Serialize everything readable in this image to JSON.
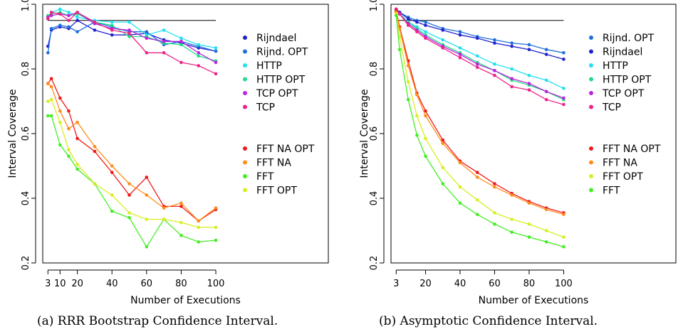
{
  "chart_data": [
    {
      "type": "line",
      "caption": "(a) RRR Bootstrap Confidence Interval.",
      "xlabel": "Number of Executions",
      "ylabel": "Interval Coverage",
      "xlim": [
        0,
        165
      ],
      "ylim": [
        0.2,
        1.0
      ],
      "xticks": [
        3,
        10,
        20,
        40,
        60,
        80,
        100
      ],
      "xtick_labels": [
        "3",
        "10",
        "20",
        "40",
        "60",
        "80",
        "100"
      ],
      "yticks": [
        0.2,
        0.4,
        0.6,
        0.8,
        1.0
      ],
      "ytick_labels": [
        "0.2",
        "0.4",
        "0.6",
        "0.8",
        "1.0"
      ],
      "reference_line": {
        "y": 0.95,
        "x": [
          3,
          100
        ]
      },
      "legend_groups": [
        {
          "position": "upper-right",
          "series": [
            "Rijndael",
            "Rijnd. OPT",
            "HTTP",
            "HTTP OPT",
            "TCP OPT",
            "TCP"
          ]
        },
        {
          "position": "middle-right",
          "series": [
            "FFT NA OPT",
            "FFT NA",
            "FFT",
            "FFT OPT"
          ]
        }
      ],
      "x": [
        3,
        5,
        10,
        15,
        20,
        30,
        40,
        50,
        60,
        70,
        80,
        90,
        100
      ],
      "series": [
        {
          "name": "Rijndael",
          "color": "#2222cc",
          "values": [
            0.87,
            0.92,
            0.93,
            0.925,
            0.95,
            0.92,
            0.905,
            0.905,
            0.91,
            0.89,
            0.88,
            0.865,
            0.855
          ]
        },
        {
          "name": "Rijnd. OPT",
          "color": "#1e6fdc",
          "values": [
            0.85,
            0.925,
            0.935,
            0.93,
            0.915,
            0.945,
            0.93,
            0.915,
            0.915,
            0.875,
            0.885,
            0.87,
            0.855
          ]
        },
        {
          "name": "HTTP",
          "color": "#22e0f0",
          "values": [
            0.96,
            0.975,
            0.985,
            0.975,
            0.96,
            0.95,
            0.945,
            0.945,
            0.905,
            0.92,
            0.895,
            0.875,
            0.865
          ]
        },
        {
          "name": "HTTP OPT",
          "color": "#22dd88",
          "values": [
            0.965,
            0.97,
            0.975,
            0.965,
            0.97,
            0.945,
            0.935,
            0.9,
            0.9,
            0.88,
            0.875,
            0.84,
            0.825
          ]
        },
        {
          "name": "TCP OPT",
          "color": "#bb22dd",
          "values": [
            0.96,
            0.965,
            0.97,
            0.965,
            0.975,
            0.94,
            0.925,
            0.92,
            0.895,
            0.885,
            0.885,
            0.85,
            0.82
          ]
        },
        {
          "name": "TCP",
          "color": "#ee2288",
          "values": [
            0.955,
            0.975,
            0.97,
            0.95,
            0.975,
            0.945,
            0.92,
            0.91,
            0.85,
            0.85,
            0.82,
            0.81,
            0.785
          ]
        },
        {
          "name": "FFT NA OPT",
          "color": "#ee1a1a",
          "values": [
            0.755,
            0.77,
            0.71,
            0.67,
            0.585,
            0.545,
            0.48,
            0.41,
            0.465,
            0.375,
            0.375,
            0.33,
            0.365
          ]
        },
        {
          "name": "FFT NA",
          "color": "#ff8c1a",
          "values": [
            0.755,
            0.745,
            0.67,
            0.615,
            0.635,
            0.56,
            0.5,
            0.445,
            0.41,
            0.37,
            0.385,
            0.33,
            0.37
          ]
        },
        {
          "name": "FFT",
          "color": "#44ee22",
          "values": [
            0.655,
            0.655,
            0.565,
            0.53,
            0.49,
            0.445,
            0.36,
            0.34,
            0.25,
            0.335,
            0.285,
            0.265,
            0.27
          ]
        },
        {
          "name": "FFT OPT",
          "color": "#d8ee22",
          "values": [
            0.7,
            0.705,
            0.635,
            0.55,
            0.505,
            0.445,
            0.41,
            0.355,
            0.335,
            0.335,
            0.325,
            0.31,
            0.31
          ]
        }
      ]
    },
    {
      "type": "line",
      "caption": "(b) Asymptotic Confidence Interval.",
      "xlabel": "Number of Executions",
      "ylabel": "Interval Coverage",
      "xlim": [
        0,
        165
      ],
      "ylim": [
        0.2,
        1.0
      ],
      "xticks": [
        3,
        20,
        40,
        60,
        80,
        100
      ],
      "xtick_labels": [
        "3",
        "20",
        "40",
        "60",
        "80",
        "100"
      ],
      "yticks": [
        0.2,
        0.4,
        0.6,
        0.8,
        1.0
      ],
      "ytick_labels": [
        "0.2",
        "0.4",
        "0.6",
        "0.8",
        "1.0"
      ],
      "reference_line": {
        "y": 0.95,
        "x": [
          3,
          100
        ]
      },
      "legend_groups": [
        {
          "position": "upper-right",
          "series": [
            "Rijnd. OPT",
            "Rijndael",
            "HTTP",
            "HTTP OPT",
            "TCP OPT",
            "TCP"
          ]
        },
        {
          "position": "middle-right",
          "series": [
            "FFT NA OPT",
            "FFT NA",
            "FFT OPT",
            "FFT"
          ]
        }
      ],
      "x": [
        3,
        5,
        10,
        15,
        20,
        30,
        40,
        50,
        60,
        70,
        80,
        90,
        100
      ],
      "series": [
        {
          "name": "Rijnd. OPT",
          "color": "#1e6fdc",
          "values": [
            0.985,
            0.975,
            0.96,
            0.95,
            0.945,
            0.925,
            0.915,
            0.9,
            0.89,
            0.88,
            0.875,
            0.86,
            0.85
          ]
        },
        {
          "name": "Rijndael",
          "color": "#2222cc",
          "values": [
            0.985,
            0.975,
            0.955,
            0.945,
            0.935,
            0.92,
            0.905,
            0.895,
            0.88,
            0.87,
            0.86,
            0.845,
            0.83
          ]
        },
        {
          "name": "HTTP",
          "color": "#22e0f0",
          "values": [
            0.985,
            0.97,
            0.945,
            0.93,
            0.915,
            0.89,
            0.865,
            0.84,
            0.815,
            0.8,
            0.78,
            0.765,
            0.74
          ]
        },
        {
          "name": "HTTP OPT",
          "color": "#22dd88",
          "values": [
            0.985,
            0.97,
            0.945,
            0.925,
            0.905,
            0.875,
            0.85,
            0.82,
            0.795,
            0.765,
            0.75,
            0.73,
            0.705
          ]
        },
        {
          "name": "TCP OPT",
          "color": "#bb22dd",
          "values": [
            0.985,
            0.97,
            0.94,
            0.92,
            0.9,
            0.87,
            0.845,
            0.815,
            0.795,
            0.77,
            0.755,
            0.73,
            0.71
          ]
        },
        {
          "name": "TCP",
          "color": "#ee2288",
          "values": [
            0.985,
            0.97,
            0.935,
            0.915,
            0.895,
            0.865,
            0.835,
            0.805,
            0.78,
            0.745,
            0.735,
            0.705,
            0.69
          ]
        },
        {
          "name": "FFT NA OPT",
          "color": "#ee1a1a",
          "values": [
            0.98,
            0.93,
            0.825,
            0.725,
            0.67,
            0.58,
            0.515,
            0.48,
            0.445,
            0.415,
            0.39,
            0.37,
            0.355
          ]
        },
        {
          "name": "FFT NA",
          "color": "#ff8c1a",
          "values": [
            0.975,
            0.925,
            0.81,
            0.72,
            0.655,
            0.57,
            0.51,
            0.465,
            0.435,
            0.41,
            0.385,
            0.365,
            0.35
          ]
        },
        {
          "name": "FFT OPT",
          "color": "#d8ee22",
          "values": [
            0.97,
            0.9,
            0.76,
            0.655,
            0.585,
            0.495,
            0.435,
            0.395,
            0.355,
            0.335,
            0.32,
            0.3,
            0.28
          ]
        },
        {
          "name": "FFT",
          "color": "#44ee22",
          "values": [
            0.965,
            0.86,
            0.705,
            0.595,
            0.53,
            0.445,
            0.385,
            0.35,
            0.32,
            0.295,
            0.28,
            0.265,
            0.25
          ]
        }
      ]
    }
  ]
}
